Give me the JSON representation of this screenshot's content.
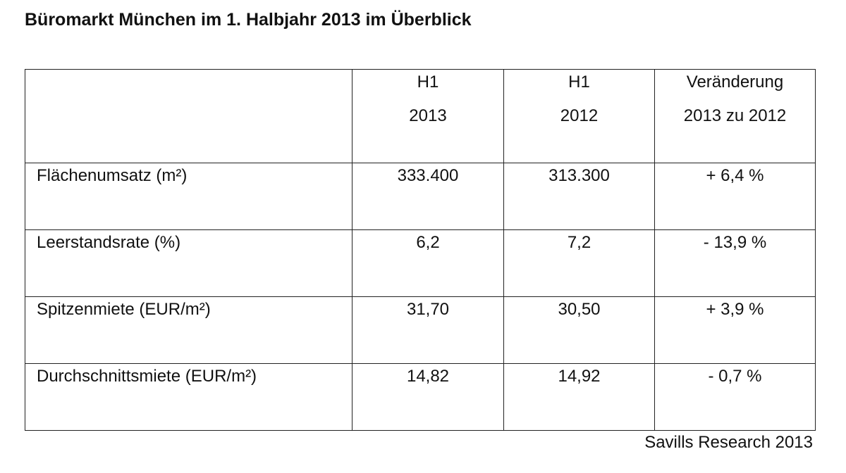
{
  "title": "Büromarkt München im 1. Halbjahr 2013 im Überblick",
  "table": {
    "header": [
      [],
      [
        "H1",
        "2013"
      ],
      [
        "H1",
        "2012"
      ],
      [
        "Veränderung",
        "2013 zu 2012"
      ]
    ],
    "rows": [
      [
        "Flächenumsatz (m²)",
        "333.400",
        "313.300",
        "+ 6,4 %"
      ],
      [
        "Leerstandsrate (%)",
        "6,2",
        "7,2",
        "- 13,9 %"
      ],
      [
        "Spitzenmiete (EUR/m²)",
        "31,70",
        "30,50",
        "+ 3,9 %"
      ],
      [
        "Durchschnittsmiete (EUR/m²)",
        "14,82",
        "14,92",
        "- 0,7 %"
      ]
    ]
  },
  "source": "Savills Research 2013"
}
